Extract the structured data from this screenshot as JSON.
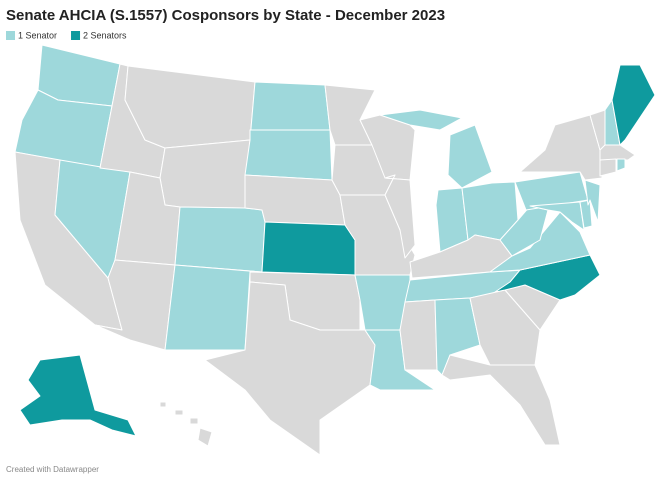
{
  "chart_data": {
    "type": "map",
    "title": "Senate AHCIA (S.1557) Cosponsors by State - December 2023",
    "series": [
      {
        "name": "1 Senator",
        "color": "#9ed8db"
      },
      {
        "name": "2 Senators",
        "color": "#0f9a9e"
      }
    ],
    "values": [
      1,
      1,
      0,
      1,
      0,
      0,
      0,
      0,
      0,
      1,
      1,
      1,
      1,
      0,
      2,
      0,
      0,
      0,
      0,
      0,
      1,
      1,
      0,
      0,
      1,
      1,
      1,
      0,
      1,
      0,
      1,
      0,
      0,
      0,
      2,
      1,
      1,
      1,
      1,
      1,
      1,
      0,
      0,
      1,
      2,
      0,
      0,
      1,
      2,
      0
    ],
    "footer": "Created with Datawrapper"
  }
}
